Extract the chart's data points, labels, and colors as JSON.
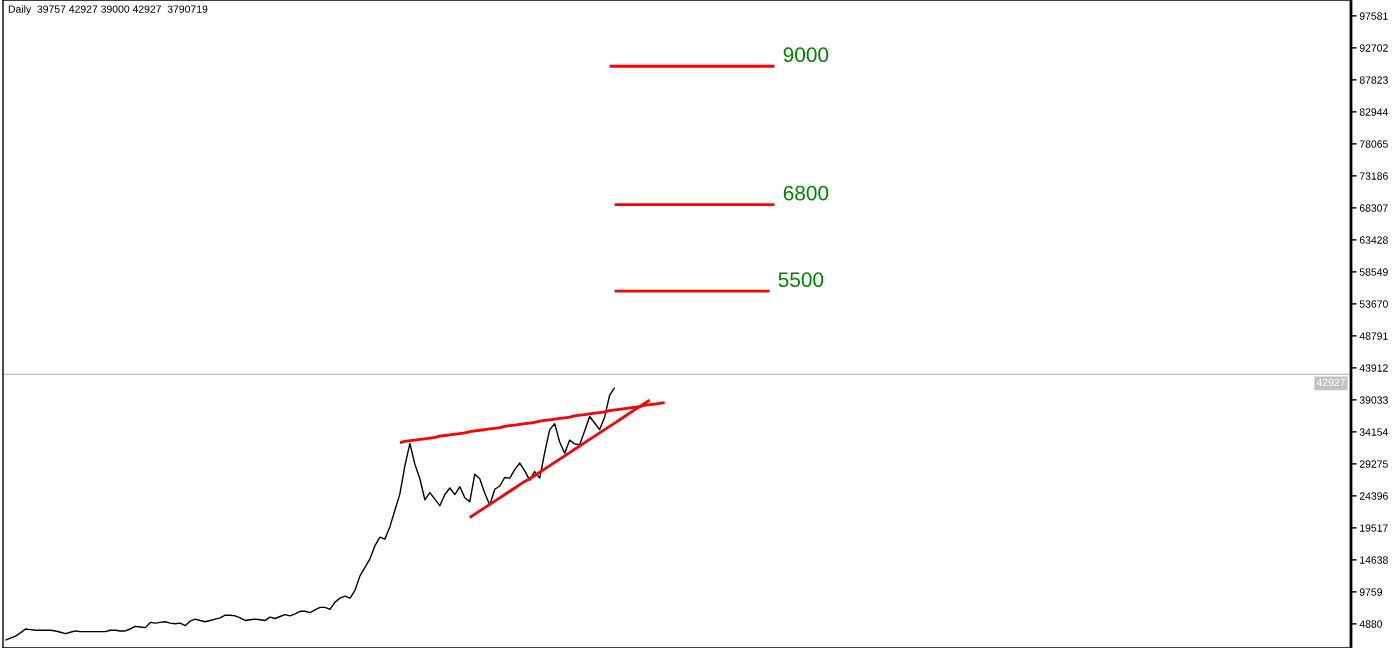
{
  "chart_data": {
    "type": "line",
    "title": "Daily  39757 42927 39000 42927  3790719",
    "categories": [
      null,
      null,
      null,
      null,
      null,
      null,
      null,
      null,
      null,
      null,
      null,
      null,
      null,
      null,
      null,
      null,
      null,
      null,
      null,
      null,
      null,
      null,
      null,
      null,
      null,
      null,
      null,
      null,
      null,
      null,
      null,
      null,
      null,
      null,
      null,
      null,
      null,
      null,
      null,
      null,
      null,
      null,
      null,
      null,
      null,
      null,
      null,
      null,
      null,
      null,
      null,
      null,
      null,
      null,
      null,
      null,
      null,
      null,
      null,
      null,
      null,
      null,
      null,
      null,
      null,
      null,
      null,
      null,
      null,
      null,
      null,
      null,
      null,
      null,
      null,
      null,
      null,
      null,
      null,
      null,
      null,
      null,
      null,
      null,
      null,
      null,
      null,
      null,
      null,
      null,
      null,
      null,
      null,
      null,
      null,
      null,
      null,
      null,
      null,
      null,
      null,
      null,
      null,
      null,
      null,
      null,
      null,
      null,
      null,
      null,
      null,
      null,
      null,
      null,
      null,
      null,
      null,
      null,
      null,
      null,
      null,
      null,
      null,
      null,
      null,
      null,
      null,
      null,
      null,
      null,
      null,
      null,
      null,
      null,
      null,
      null,
      null,
      null,
      null,
      null,
      null,
      null,
      null,
      null,
      null,
      null,
      null,
      null,
      null,
      null,
      null,
      null,
      null,
      null,
      null,
      null,
      null,
      null,
      null,
      null,
      null,
      null,
      null,
      null,
      null,
      null,
      null,
      null,
      null,
      null,
      null,
      null,
      null,
      null,
      null,
      null,
      null,
      null,
      null,
      null,
      null,
      null,
      null,
      null,
      null,
      null,
      null,
      null,
      null,
      null,
      null,
      null,
      null,
      null,
      null,
      null,
      null,
      null,
      null,
      null,
      null,
      null,
      null,
      null,
      null,
      null,
      null,
      null,
      null,
      null,
      null,
      null,
      null,
      null,
      null,
      null,
      null,
      null,
      null,
      null,
      null,
      null,
      null,
      null,
      null,
      null,
      null,
      null,
      null,
      null,
      null,
      null,
      null,
      null,
      null,
      null,
      null,
      null,
      null,
      null,
      null,
      null,
      null,
      null,
      null,
      null,
      null,
      null,
      null,
      null,
      null,
      null,
      null,
      null,
      null,
      null,
      null,
      null,
      null,
      null,
      null,
      null,
      null,
      null,
      null,
      null,
      null,
      null,
      null,
      null
    ],
    "ylim": [
      1200,
      100000
    ],
    "yticks": [
      4880,
      9759,
      14638,
      19517,
      24396,
      29275,
      34154,
      39033,
      43912,
      48791,
      53670,
      58549,
      63428,
      68307,
      73186,
      78065,
      82944,
      87823,
      92702,
      97581
    ],
    "tick_labels": "y",
    "series": [
      {
        "color": "#000000",
        "values": [
          2400,
          2700,
          3000,
          3500,
          4100,
          4000,
          3900,
          3900,
          3900,
          3900,
          3800,
          3600,
          3400,
          3600,
          3800,
          3700,
          3700,
          3700,
          3700,
          3700,
          3700,
          3900,
          3900,
          3800,
          3800,
          4100,
          4500,
          4400,
          4300,
          5100,
          5000,
          5100,
          5200,
          5000,
          4900,
          5000,
          4600,
          5300,
          5600,
          5400,
          5200,
          5400,
          5600,
          5800,
          6200,
          6200,
          6100,
          5800,
          5400,
          5500,
          5600,
          5500,
          5400,
          5900,
          5700,
          6000,
          6300,
          6100,
          6400,
          6800,
          6800,
          6600,
          7000,
          7400,
          7400,
          7100,
          8200,
          8800,
          9100,
          8800,
          10000,
          12200,
          13500,
          14800,
          16800,
          18100,
          17800,
          19700,
          22200,
          24700,
          29000,
          32400,
          29200,
          27000,
          23800,
          24900,
          23900,
          22900,
          24600,
          25600,
          24600,
          25800,
          24100,
          23500,
          27700,
          27000,
          24800,
          23000,
          25400,
          25900,
          27200,
          27100,
          28400,
          29400,
          28200,
          26800,
          28100,
          27100,
          31000,
          34500,
          35400,
          32600,
          30900,
          32900,
          32300,
          32200,
          34300,
          36500,
          35500,
          34500,
          36400,
          39700,
          40900,
          null,
          null,
          null,
          null,
          null,
          null,
          null,
          null,
          null,
          null,
          null,
          null,
          null,
          null,
          null,
          null,
          null,
          null,
          null,
          null,
          null,
          null,
          null,
          null,
          null,
          null,
          null,
          null,
          null,
          null,
          null,
          null,
          null,
          null,
          null,
          null,
          null,
          null,
          null,
          null,
          null,
          null,
          null,
          null,
          null,
          null,
          null,
          null,
          null,
          null,
          null,
          null,
          null,
          null,
          null,
          null,
          null,
          null,
          null,
          null,
          null,
          null,
          null,
          null,
          null,
          null,
          null,
          null,
          null,
          null,
          null,
          null,
          null,
          null,
          null,
          null,
          null,
          null,
          null,
          null,
          null,
          null,
          null,
          null,
          null,
          null,
          null,
          null,
          null,
          null,
          null,
          null,
          null,
          null,
          null,
          null,
          null,
          null,
          null,
          null,
          null,
          null,
          null,
          null,
          null,
          null,
          null,
          null,
          null,
          null,
          null,
          null,
          null,
          null,
          null,
          null,
          null,
          null,
          null,
          null,
          null,
          null,
          null,
          null,
          null,
          null,
          null,
          null,
          null,
          null,
          null,
          null,
          null,
          null,
          null,
          null,
          null,
          null,
          null,
          null,
          null,
          null,
          null,
          null,
          null,
          null,
          null
        ]
      },
      {
        "color": "#ff0000",
        "values": [
          null,
          null,
          null,
          null,
          null,
          null,
          null,
          null,
          null,
          null,
          null,
          null,
          null,
          null,
          null,
          null,
          null,
          null,
          null,
          null,
          null,
          null,
          null,
          null,
          null,
          null,
          null,
          null,
          null,
          null,
          null,
          null,
          null,
          null,
          null,
          null,
          null,
          null,
          null,
          null,
          null,
          null,
          null,
          null,
          null,
          null,
          null,
          null,
          null,
          null,
          null,
          null,
          null,
          null,
          null,
          null,
          null,
          null,
          null,
          null,
          null,
          null,
          null,
          null,
          null,
          null,
          null,
          null,
          null,
          null,
          null,
          null,
          null,
          null,
          null,
          null,
          null,
          null,
          null,
          32500,
          32700,
          32800,
          32900,
          33000,
          33100,
          33200,
          33300,
          33500,
          33600,
          33700,
          33800,
          33900,
          34000,
          34200,
          34300,
          34400,
          34500,
          34600,
          34700,
          34800,
          35000,
          35100,
          35200,
          35300,
          35400,
          35500,
          35600,
          35800,
          35900,
          36000,
          36100,
          36200,
          36300,
          36400,
          36600,
          36700,
          36800,
          36900,
          37000,
          37100,
          37200,
          37400,
          37500,
          37600,
          37700,
          37800,
          37900,
          38000,
          38200,
          38300,
          38400,
          38500,
          38600,
          null,
          null,
          null,
          null,
          null,
          null,
          null,
          null,
          null,
          null,
          null,
          null,
          null,
          null,
          null,
          null,
          null,
          null,
          null,
          null,
          null,
          null,
          null,
          null,
          null,
          null,
          null,
          null,
          null,
          null,
          null,
          null,
          null,
          null,
          null,
          null,
          null,
          null,
          null,
          null,
          null,
          null,
          null,
          null,
          null,
          null,
          null,
          null,
          null,
          null,
          null,
          null,
          null,
          null,
          null,
          null,
          null,
          null,
          null,
          null,
          null,
          null,
          null,
          null,
          null,
          null,
          null,
          null,
          null,
          null,
          null,
          null,
          null,
          null,
          null,
          null,
          null,
          null,
          null,
          null,
          null,
          null,
          null,
          null,
          null,
          null,
          null,
          null,
          null,
          null,
          null,
          null,
          null,
          null,
          null,
          null,
          null,
          null,
          null,
          null,
          null,
          null,
          null,
          null,
          null,
          null,
          null,
          null,
          null,
          null,
          null,
          null,
          null,
          null,
          null,
          null,
          null,
          null,
          null,
          null,
          null,
          null,
          null,
          null,
          null,
          null,
          null,
          null,
          null,
          null,
          null,
          null,
          null,
          null,
          null,
          null,
          null
        ]
      },
      {
        "color": "#ff0000",
        "values": [
          null,
          null,
          null,
          null,
          null,
          null,
          null,
          null,
          null,
          null,
          null,
          null,
          null,
          null,
          null,
          null,
          null,
          null,
          null,
          null,
          null,
          null,
          null,
          null,
          null,
          null,
          null,
          null,
          null,
          null,
          null,
          null,
          null,
          null,
          null,
          null,
          null,
          null,
          null,
          null,
          null,
          null,
          null,
          null,
          null,
          null,
          null,
          null,
          null,
          null,
          null,
          null,
          null,
          null,
          null,
          null,
          null,
          null,
          null,
          null,
          null,
          null,
          null,
          null,
          null,
          null,
          null,
          null,
          null,
          null,
          null,
          null,
          null,
          null,
          null,
          null,
          null,
          null,
          null,
          null,
          null,
          null,
          null,
          null,
          null,
          null,
          null,
          null,
          null,
          null,
          null,
          null,
          null,
          21100,
          21600,
          22100,
          22600,
          23100,
          23600,
          24100,
          24600,
          25100,
          25600,
          26100,
          26600,
          27000,
          27500,
          28000,
          28500,
          29000,
          29500,
          30000,
          30500,
          31000,
          31500,
          32000,
          32500,
          33000,
          33500,
          34000,
          34500,
          35000,
          35500,
          36000,
          36500,
          37000,
          37500,
          38000,
          38500,
          39000,
          null,
          null,
          null,
          null,
          null,
          null,
          null,
          null,
          null,
          null,
          null,
          null,
          null,
          null,
          null,
          null,
          null,
          null,
          null,
          null,
          null,
          null,
          null,
          null,
          null,
          null,
          null,
          null,
          null,
          null,
          null,
          null,
          null,
          null,
          null,
          null,
          null,
          null,
          null,
          null,
          null,
          null,
          null,
          null,
          null,
          null,
          null,
          null,
          null,
          null,
          null,
          null,
          null,
          null,
          null,
          null,
          null,
          null,
          null,
          null,
          null,
          null,
          null,
          null,
          null,
          null,
          null,
          null,
          null,
          null,
          null,
          null,
          null,
          null,
          null,
          null,
          null,
          null,
          null,
          null,
          null,
          null,
          null,
          null,
          null,
          null,
          null,
          null,
          null,
          null,
          null,
          null,
          null,
          null,
          null,
          null,
          null,
          null,
          null,
          null,
          null,
          null,
          null,
          null,
          null,
          null,
          null,
          null,
          null,
          null,
          null,
          null,
          null,
          null,
          null,
          null,
          null,
          null,
          null,
          null,
          null,
          null,
          null,
          null,
          null,
          null,
          null,
          null,
          null,
          null,
          null,
          null,
          null,
          null,
          null,
          null,
          null,
          null,
          null,
          null
        ]
      },
      {
        "name": "9000",
        "color": "#ff0000",
        "values": [
          null,
          null,
          null,
          null,
          null,
          null,
          null,
          null,
          null,
          null,
          null,
          null,
          null,
          null,
          null,
          null,
          null,
          null,
          null,
          null,
          null,
          null,
          null,
          null,
          null,
          null,
          null,
          null,
          null,
          null,
          null,
          null,
          null,
          null,
          null,
          null,
          null,
          null,
          null,
          null,
          null,
          null,
          null,
          null,
          null,
          null,
          null,
          null,
          null,
          null,
          null,
          null,
          null,
          null,
          null,
          null,
          null,
          null,
          null,
          null,
          null,
          null,
          null,
          null,
          null,
          null,
          null,
          null,
          null,
          null,
          null,
          null,
          null,
          null,
          null,
          null,
          null,
          null,
          null,
          null,
          null,
          null,
          null,
          null,
          null,
          null,
          null,
          null,
          null,
          null,
          null,
          null,
          null,
          null,
          null,
          null,
          null,
          null,
          null,
          null,
          null,
          null,
          null,
          null,
          null,
          null,
          null,
          null,
          null,
          null,
          null,
          null,
          null,
          null,
          null,
          null,
          null,
          null,
          null,
          null,
          null,
          89900,
          89900,
          89900,
          89900,
          89900,
          89900,
          89900,
          89900,
          89900,
          89900,
          89900,
          89900,
          89900,
          89900,
          89900,
          89900,
          89900,
          89900,
          89900,
          89900,
          89900,
          89900,
          89900,
          89900,
          89900,
          89900,
          89900,
          89900,
          89900,
          89900,
          89900,
          89900,
          89900,
          89900,
          null,
          null,
          null,
          null,
          null,
          null,
          null,
          null,
          null,
          null,
          null,
          null,
          null,
          null,
          null,
          null,
          null,
          null,
          null,
          null,
          null,
          null,
          null,
          null,
          null,
          null,
          null,
          null,
          null,
          null,
          null,
          null,
          null,
          null,
          null,
          null,
          null,
          null,
          null,
          null,
          null,
          null,
          null,
          null,
          null,
          null,
          null,
          null,
          null,
          null,
          null,
          null,
          null,
          null,
          null,
          null,
          null,
          null,
          null,
          null,
          null,
          null,
          null,
          null,
          null,
          null,
          null,
          null,
          null,
          null,
          null,
          null,
          null,
          null,
          null,
          null,
          null,
          null,
          null,
          null,
          null,
          null,
          null,
          null,
          null,
          null,
          null,
          null,
          null,
          null,
          null,
          null,
          null,
          null,
          null,
          null,
          null,
          null,
          null,
          null,
          null,
          null,
          null,
          null,
          null,
          null,
          null,
          null,
          null,
          null,
          null,
          null,
          null,
          null,
          null
        ]
      },
      {
        "name": "6800",
        "color": "#ff0000",
        "values": [
          null,
          null,
          null,
          null,
          null,
          null,
          null,
          null,
          null,
          null,
          null,
          null,
          null,
          null,
          null,
          null,
          null,
          null,
          null,
          null,
          null,
          null,
          null,
          null,
          null,
          null,
          null,
          null,
          null,
          null,
          null,
          null,
          null,
          null,
          null,
          null,
          null,
          null,
          null,
          null,
          null,
          null,
          null,
          null,
          null,
          null,
          null,
          null,
          null,
          null,
          null,
          null,
          null,
          null,
          null,
          null,
          null,
          null,
          null,
          null,
          null,
          null,
          null,
          null,
          null,
          null,
          null,
          null,
          null,
          null,
          null,
          null,
          null,
          null,
          null,
          null,
          null,
          null,
          null,
          null,
          null,
          null,
          null,
          null,
          null,
          null,
          null,
          null,
          null,
          null,
          null,
          null,
          null,
          null,
          null,
          null,
          null,
          null,
          null,
          null,
          null,
          null,
          null,
          null,
          null,
          null,
          null,
          null,
          null,
          null,
          null,
          null,
          null,
          null,
          null,
          null,
          null,
          null,
          null,
          null,
          null,
          null,
          68800,
          68800,
          68800,
          68800,
          68800,
          68800,
          68800,
          68800,
          68800,
          68800,
          68800,
          68800,
          68800,
          68800,
          68800,
          68800,
          68800,
          68800,
          68800,
          68800,
          68800,
          68800,
          68800,
          68800,
          68800,
          68800,
          68800,
          68800,
          68800,
          68800,
          68800,
          68800,
          68800,
          null,
          null,
          null,
          null,
          null,
          null,
          null,
          null,
          null,
          null,
          null,
          null,
          null,
          null,
          null,
          null,
          null,
          null,
          null,
          null,
          null,
          null,
          null,
          null,
          null,
          null,
          null,
          null,
          null,
          null,
          null,
          null,
          null,
          null,
          null,
          null,
          null,
          null,
          null,
          null,
          null,
          null,
          null,
          null,
          null,
          null,
          null,
          null,
          null,
          null,
          null,
          null,
          null,
          null,
          null,
          null,
          null,
          null,
          null,
          null,
          null,
          null,
          null,
          null,
          null,
          null,
          null,
          null,
          null,
          null,
          null,
          null,
          null,
          null,
          null,
          null,
          null,
          null,
          null,
          null,
          null,
          null,
          null,
          null,
          null,
          null,
          null,
          null,
          null,
          null,
          null,
          null,
          null,
          null,
          null,
          null,
          null,
          null,
          null,
          null,
          null,
          null,
          null,
          null,
          null,
          null,
          null,
          null,
          null,
          null,
          null,
          null,
          null,
          null,
          null
        ]
      },
      {
        "name": "5500",
        "color": "#ff0000",
        "values": [
          null,
          null,
          null,
          null,
          null,
          null,
          null,
          null,
          null,
          null,
          null,
          null,
          null,
          null,
          null,
          null,
          null,
          null,
          null,
          null,
          null,
          null,
          null,
          null,
          null,
          null,
          null,
          null,
          null,
          null,
          null,
          null,
          null,
          null,
          null,
          null,
          null,
          null,
          null,
          null,
          null,
          null,
          null,
          null,
          null,
          null,
          null,
          null,
          null,
          null,
          null,
          null,
          null,
          null,
          null,
          null,
          null,
          null,
          null,
          null,
          null,
          null,
          null,
          null,
          null,
          null,
          null,
          null,
          null,
          null,
          null,
          null,
          null,
          null,
          null,
          null,
          null,
          null,
          null,
          null,
          null,
          null,
          null,
          null,
          null,
          null,
          null,
          null,
          null,
          null,
          null,
          null,
          null,
          null,
          null,
          null,
          null,
          null,
          null,
          null,
          null,
          null,
          null,
          null,
          null,
          null,
          null,
          null,
          null,
          null,
          null,
          null,
          null,
          null,
          null,
          null,
          null,
          null,
          null,
          null,
          null,
          null,
          55600,
          55600,
          55600,
          55600,
          55600,
          55600,
          55600,
          55600,
          55600,
          55600,
          55600,
          55600,
          55600,
          55600,
          55600,
          55600,
          55600,
          55600,
          55600,
          55600,
          55600,
          55600,
          55600,
          55600,
          55600,
          55600,
          55600,
          55600,
          55600,
          55600,
          55600,
          55600,
          null,
          null,
          null,
          null,
          null,
          null,
          null,
          null,
          null,
          null,
          null,
          null,
          null,
          null,
          null,
          null,
          null,
          null,
          null,
          null,
          null,
          null,
          null,
          null,
          null,
          null,
          null,
          null,
          null,
          null,
          null,
          null,
          null,
          null,
          null,
          null,
          null,
          null,
          null,
          null,
          null,
          null,
          null,
          null,
          null,
          null,
          null,
          null,
          null,
          null,
          null,
          null,
          null,
          null,
          null,
          null,
          null,
          null,
          null,
          null,
          null,
          null,
          null,
          null,
          null,
          null,
          null,
          null,
          null,
          null,
          null,
          null,
          null,
          null,
          null,
          null,
          null,
          null,
          null,
          null,
          null,
          null,
          null,
          null,
          null,
          null,
          null,
          null,
          null,
          null,
          null,
          null,
          null,
          null,
          null,
          null,
          null,
          null,
          null,
          null,
          null,
          null,
          null,
          null,
          null,
          null,
          null,
          null,
          null,
          null,
          null,
          null,
          null,
          null,
          null,
          null
        ]
      }
    ],
    "ref_lines": [
      {
        "axis": "y",
        "value": 42927,
        "label": "42927",
        "color": "#c0c0c0"
      }
    ]
  }
}
